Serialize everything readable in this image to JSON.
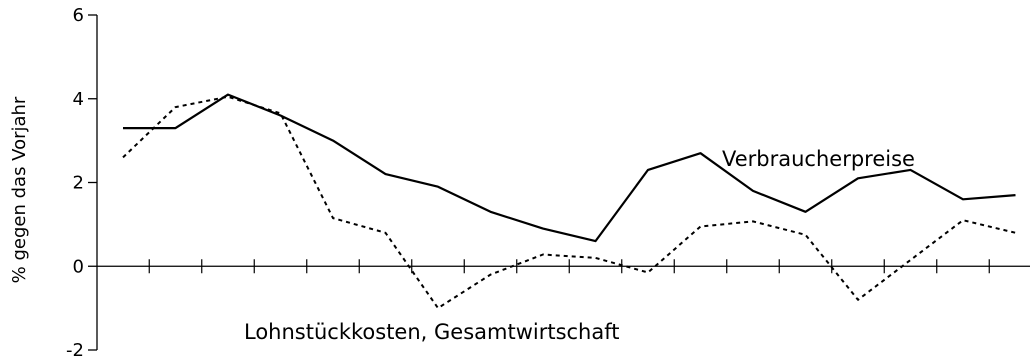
{
  "chart_data": {
    "type": "line",
    "title": "",
    "xlabel": "",
    "ylabel": "% gegen das Vorjahr",
    "ylim": [
      -2,
      6
    ],
    "yticks": [
      -2,
      0,
      2,
      4,
      6
    ],
    "x": [
      1,
      2,
      3,
      4,
      5,
      6,
      7,
      8,
      9,
      10,
      11,
      12,
      13,
      14,
      15,
      16,
      17,
      18
    ],
    "series": [
      {
        "name": "Verbraucherpreise",
        "style": "solid",
        "values": [
          3.3,
          3.3,
          4.1,
          3.6,
          3.0,
          2.2,
          1.9,
          1.3,
          0.9,
          0.6,
          2.3,
          2.7,
          1.8,
          1.3,
          2.1,
          2.3,
          1.6,
          1.7
        ]
      },
      {
        "name": "Lohnstückkosten, Gesamtwirtschaft",
        "style": "dashed",
        "values": [
          2.6,
          3.8,
          4.05,
          3.65,
          1.15,
          0.8,
          -1.0,
          -0.2,
          0.28,
          0.2,
          -0.15,
          0.95,
          1.07,
          0.75,
          -0.8,
          0.15,
          1.1,
          0.8
        ]
      }
    ],
    "grid": false,
    "legend": "none",
    "annotations": [
      {
        "text": "Verbraucherpreise"
      },
      {
        "text": "Lohnstückkosten, Gesamtwirtschaft"
      }
    ],
    "colors": {
      "line": "#000000",
      "axis": "#000000"
    }
  }
}
